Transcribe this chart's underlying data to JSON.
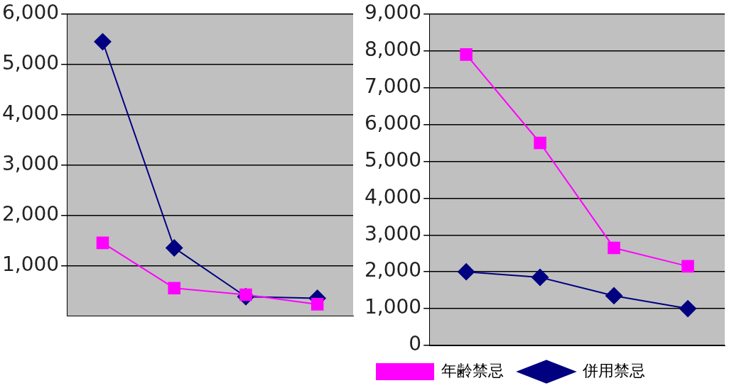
{
  "chart_data": [
    {
      "type": "line",
      "categories": [
        null,
        null,
        null,
        null
      ],
      "ylim": [
        0,
        6000
      ],
      "yticks": [
        {
          "value": 1000,
          "label": "1,000"
        },
        {
          "value": 2000,
          "label": "2,000"
        },
        {
          "value": 3000,
          "label": "3,000"
        },
        {
          "value": 4000,
          "label": "4,000"
        },
        {
          "value": 5000,
          "label": "5,000"
        },
        {
          "value": 6000,
          "label": "6,000"
        }
      ],
      "grid": "y",
      "legend": false,
      "series": [
        {
          "color": "#000080",
          "marker": "diamond",
          "values": [
            5450,
            1350,
            380,
            350
          ]
        },
        {
          "color": "#ff00ff",
          "marker": "square",
          "values": [
            1450,
            550,
            420,
            230
          ]
        }
      ]
    },
    {
      "type": "line",
      "categories": [
        null,
        null,
        null,
        null
      ],
      "ylim": [
        0,
        9000
      ],
      "yticks": [
        {
          "value": 0,
          "label": "0"
        },
        {
          "value": 1000,
          "label": "1,000"
        },
        {
          "value": 2000,
          "label": "2,000"
        },
        {
          "value": 3000,
          "label": "3,000"
        },
        {
          "value": 4000,
          "label": "4,000"
        },
        {
          "value": 5000,
          "label": "5,000"
        },
        {
          "value": 6000,
          "label": "6,000"
        },
        {
          "value": 7000,
          "label": "7,000"
        },
        {
          "value": 8000,
          "label": "8,000"
        },
        {
          "value": 9000,
          "label": "9,000"
        }
      ],
      "grid": "y",
      "legend": "bottom",
      "series": [
        {
          "name": "併用禁忌",
          "color": "#000080",
          "marker": "diamond",
          "values": [
            2000,
            1850,
            1350,
            1000
          ]
        },
        {
          "name": "年齢禁忌",
          "color": "#ff00ff",
          "marker": "square",
          "values": [
            7900,
            5500,
            2650,
            2150
          ]
        }
      ]
    }
  ]
}
